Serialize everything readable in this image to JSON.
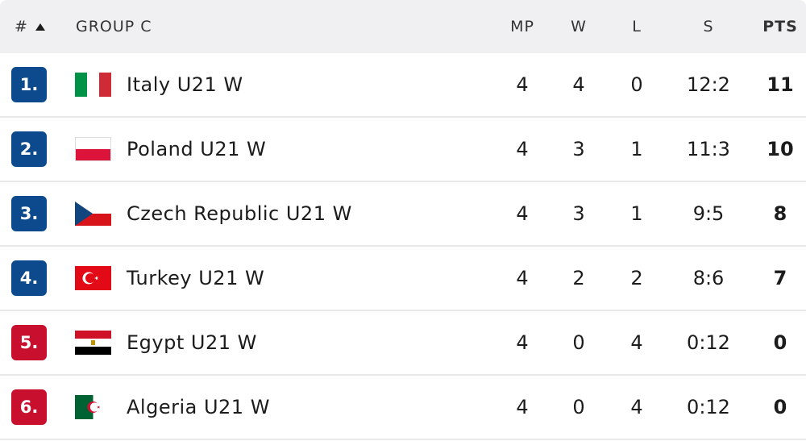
{
  "table": {
    "header": {
      "rank": "#",
      "group": "GROUP C",
      "mp": "MP",
      "w": "W",
      "l": "L",
      "s": "S",
      "pts": "PTS"
    },
    "rows": [
      {
        "rank": "1.",
        "team": "Italy U21 W",
        "mp": 4,
        "w": 4,
        "l": 0,
        "s": "12:2",
        "pts": 11
      },
      {
        "rank": "2.",
        "team": "Poland U21 W",
        "mp": 4,
        "w": 3,
        "l": 1,
        "s": "11:3",
        "pts": 10
      },
      {
        "rank": "3.",
        "team": "Czech Republic U21 W",
        "mp": 4,
        "w": 3,
        "l": 1,
        "s": "9:5",
        "pts": 8
      },
      {
        "rank": "4.",
        "team": "Turkey U21 W",
        "mp": 4,
        "w": 2,
        "l": 2,
        "s": "8:6",
        "pts": 7
      },
      {
        "rank": "5.",
        "team": "Egypt U21 W",
        "mp": 4,
        "w": 0,
        "l": 4,
        "s": "0:12",
        "pts": 0
      },
      {
        "rank": "6.",
        "team": "Algeria U21 W",
        "mp": 4,
        "w": 0,
        "l": 4,
        "s": "0:12",
        "pts": 0
      }
    ]
  }
}
